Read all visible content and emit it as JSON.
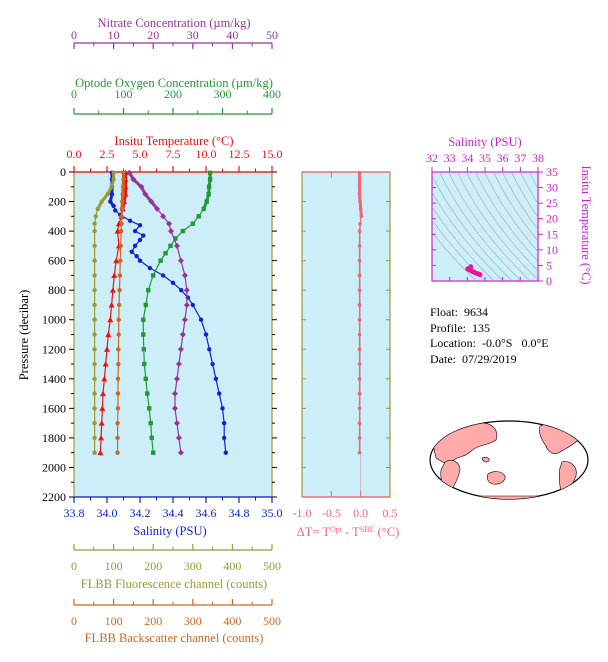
{
  "float_info": {
    "float": "Float:  9634",
    "profile": "Profile:  135",
    "location": "Location:  -0.0°S   0.0°E",
    "date": "Date:  07/29/2019"
  },
  "colors": {
    "nitrate": "#993399",
    "oxygen": "#229933",
    "temperature": "#ee1111",
    "salinity": "#1122cc",
    "dt": "#ee6677",
    "salinity_top": "#cc22cc",
    "fluorescence": "#999933",
    "backscatter": "#cc6622",
    "panel_bg": "#cceef8",
    "land": "#ffaaaa"
  },
  "chart_data": [
    {
      "type": "line",
      "panel": "profiles",
      "ylabel": "Pressure (decibar)",
      "ylim": [
        2200,
        0
      ],
      "y_ticks": [
        0,
        200,
        400,
        600,
        800,
        1000,
        1200,
        1400,
        1600,
        1800,
        2000,
        2200
      ],
      "axes": {
        "nitrate": {
          "label": "Nitrate Concentration (µm/kg)",
          "range": [
            0,
            50
          ],
          "ticks": [
            0,
            10,
            20,
            30,
            40,
            50
          ]
        },
        "oxygen": {
          "label": "Optode Oxygen Concentration (µm/kg)",
          "range": [
            0,
            400
          ],
          "ticks": [
            0,
            100,
            200,
            300,
            400
          ]
        },
        "temperature": {
          "label": "Insitu Temperature (°C)",
          "range": [
            0.0,
            15.0
          ],
          "ticks": [
            "0.0",
            "2.5",
            "5.0",
            "7.5",
            "10.0",
            "12.5",
            "15.0"
          ]
        },
        "salinity": {
          "label": "Salinity (PSU)",
          "range": [
            33.8,
            35.0
          ],
          "ticks": [
            "33.8",
            "34.0",
            "34.2",
            "34.4",
            "34.6",
            "34.8",
            "35.0"
          ]
        },
        "fluorescence": {
          "label": "FLBB Fluorescence channel (counts)",
          "range": [
            0,
            500
          ],
          "ticks": [
            0,
            100,
            200,
            300,
            400,
            500
          ]
        },
        "backscatter": {
          "label": "FLBB Backscatter channel (counts)",
          "range": [
            0,
            500
          ],
          "ticks": [
            0,
            100,
            200,
            300,
            400,
            500
          ]
        }
      },
      "series": [
        {
          "axis": "temperature",
          "marker": "triangle",
          "pressure": [
            5,
            50,
            100,
            150,
            200,
            250,
            300,
            350,
            400,
            500,
            600,
            700,
            800,
            900,
            1000,
            1100,
            1200,
            1300,
            1400,
            1500,
            1600,
            1700,
            1800,
            1900
          ],
          "values": [
            3.9,
            3.9,
            3.9,
            3.9,
            3.8,
            3.7,
            3.6,
            3.4,
            3.3,
            3.4,
            3.2,
            3.05,
            2.95,
            2.85,
            2.75,
            2.6,
            2.5,
            2.4,
            2.3,
            2.2,
            2.15,
            2.1,
            2.05,
            2.0
          ]
        },
        {
          "axis": "salinity",
          "marker": "circle",
          "pressure": [
            5,
            50,
            100,
            150,
            200,
            230,
            260,
            290,
            330,
            360,
            400,
            430,
            460,
            500,
            540,
            570,
            600,
            650,
            700,
            750,
            800,
            850,
            900,
            1000,
            1100,
            1200,
            1300,
            1400,
            1500,
            1600,
            1700,
            1800,
            1900
          ],
          "values": [
            34.03,
            34.03,
            34.03,
            34.03,
            34.02,
            34.04,
            34.05,
            34.08,
            34.14,
            34.2,
            34.17,
            34.22,
            34.2,
            34.17,
            34.15,
            34.18,
            34.2,
            34.26,
            34.34,
            34.4,
            34.45,
            34.49,
            34.52,
            34.57,
            34.6,
            34.62,
            34.64,
            34.66,
            34.68,
            34.7,
            34.71,
            34.71,
            34.72
          ]
        },
        {
          "axis": "oxygen",
          "marker": "square",
          "pressure": [
            5,
            50,
            100,
            150,
            200,
            250,
            300,
            350,
            400,
            450,
            500,
            550,
            600,
            700,
            800,
            900,
            1000,
            1100,
            1200,
            1300,
            1400,
            1500,
            1600,
            1700,
            1800,
            1900
          ],
          "values": [
            275,
            275,
            273,
            272,
            268,
            262,
            252,
            240,
            220,
            205,
            195,
            185,
            175,
            160,
            150,
            145,
            140,
            140,
            141,
            142,
            145,
            148,
            152,
            155,
            157,
            160
          ]
        },
        {
          "axis": "nitrate",
          "marker": "diamond",
          "pressure": [
            5,
            50,
            100,
            150,
            200,
            250,
            300,
            350,
            400,
            500,
            600,
            700,
            800,
            900,
            1000,
            1100,
            1200,
            1300,
            1400,
            1500,
            1600,
            1700,
            1800,
            1900
          ],
          "values": [
            14,
            15,
            17,
            18,
            19.5,
            21,
            22.5,
            24,
            24.5,
            26,
            27,
            28,
            28.5,
            28.5,
            28,
            27.5,
            27,
            26.5,
            26,
            25.5,
            25.5,
            26,
            26.5,
            27
          ]
        },
        {
          "axis": "fluorescence",
          "marker": "circle",
          "pressure": [
            5,
            50,
            100,
            150,
            200,
            250,
            300,
            350,
            400,
            500,
            600,
            700,
            800,
            900,
            1000,
            1100,
            1200,
            1300,
            1400,
            1500,
            1600,
            1700,
            1800,
            1900
          ],
          "values": [
            100,
            100,
            95,
            85,
            70,
            60,
            55,
            52,
            52,
            52,
            52,
            52,
            52,
            52,
            52,
            52,
            52,
            52,
            52,
            52,
            52,
            52,
            52,
            52
          ]
        },
        {
          "axis": "backscatter",
          "marker": "circle",
          "pressure": [
            5,
            50,
            100,
            150,
            200,
            250,
            300,
            350,
            400,
            500,
            600,
            700,
            800,
            900,
            1000,
            1100,
            1200,
            1300,
            1400,
            1500,
            1600,
            1700,
            1800,
            1900
          ],
          "values": [
            125,
            125,
            124,
            123,
            122,
            121,
            120,
            120,
            119,
            118,
            117,
            116,
            115,
            114,
            113,
            113,
            112,
            112,
            111,
            111,
            111,
            110,
            110,
            110
          ]
        }
      ]
    },
    {
      "type": "line",
      "panel": "delta-t",
      "xlabel": "ΔT= T^Opt - T^SBE (°C)",
      "xlim": [
        -1.0,
        0.5
      ],
      "x_ticks": [
        "-1.0",
        "-0.5",
        "0.0",
        "0.5"
      ],
      "ylim": [
        2200,
        0
      ],
      "series": [
        {
          "name": "ΔT",
          "pressure": [
            5,
            50,
            100,
            150,
            200,
            250,
            300,
            350,
            400,
            500,
            600,
            700,
            800,
            900,
            1000,
            1100,
            1200,
            1300,
            1400,
            1500,
            1600,
            1700,
            1800,
            1900
          ],
          "values": [
            -0.02,
            -0.02,
            -0.02,
            -0.02,
            -0.01,
            0.0,
            0.01,
            -0.01,
            -0.02,
            -0.02,
            -0.02,
            -0.02,
            -0.02,
            -0.02,
            -0.02,
            -0.02,
            -0.02,
            -0.02,
            -0.02,
            -0.02,
            -0.02,
            -0.02,
            -0.02,
            -0.02
          ]
        }
      ]
    },
    {
      "type": "scatter",
      "panel": "ts-diagram",
      "xlabel": "Salinity (PSU)",
      "ylabel": "Insitu Temperature (°C)",
      "xlim": [
        32,
        38
      ],
      "ylim": [
        0,
        35
      ],
      "x_ticks": [
        32,
        33,
        34,
        35,
        36,
        37,
        38
      ],
      "y_ticks": [
        0,
        5,
        10,
        15,
        20,
        25,
        30,
        35
      ],
      "grid": "density contours",
      "points": {
        "x": [
          34.02,
          34.05,
          34.1,
          34.15,
          34.2,
          34.25,
          34.3,
          34.35,
          34.4,
          34.45,
          34.5,
          34.55,
          34.6,
          34.65,
          34.7,
          34.72,
          34.2,
          34.17
        ],
        "y": [
          3.9,
          3.8,
          3.6,
          3.5,
          3.4,
          3.2,
          3.0,
          2.9,
          2.8,
          2.6,
          2.5,
          2.4,
          2.3,
          2.2,
          2.1,
          2.0,
          4.6,
          4.4
        ]
      }
    }
  ]
}
